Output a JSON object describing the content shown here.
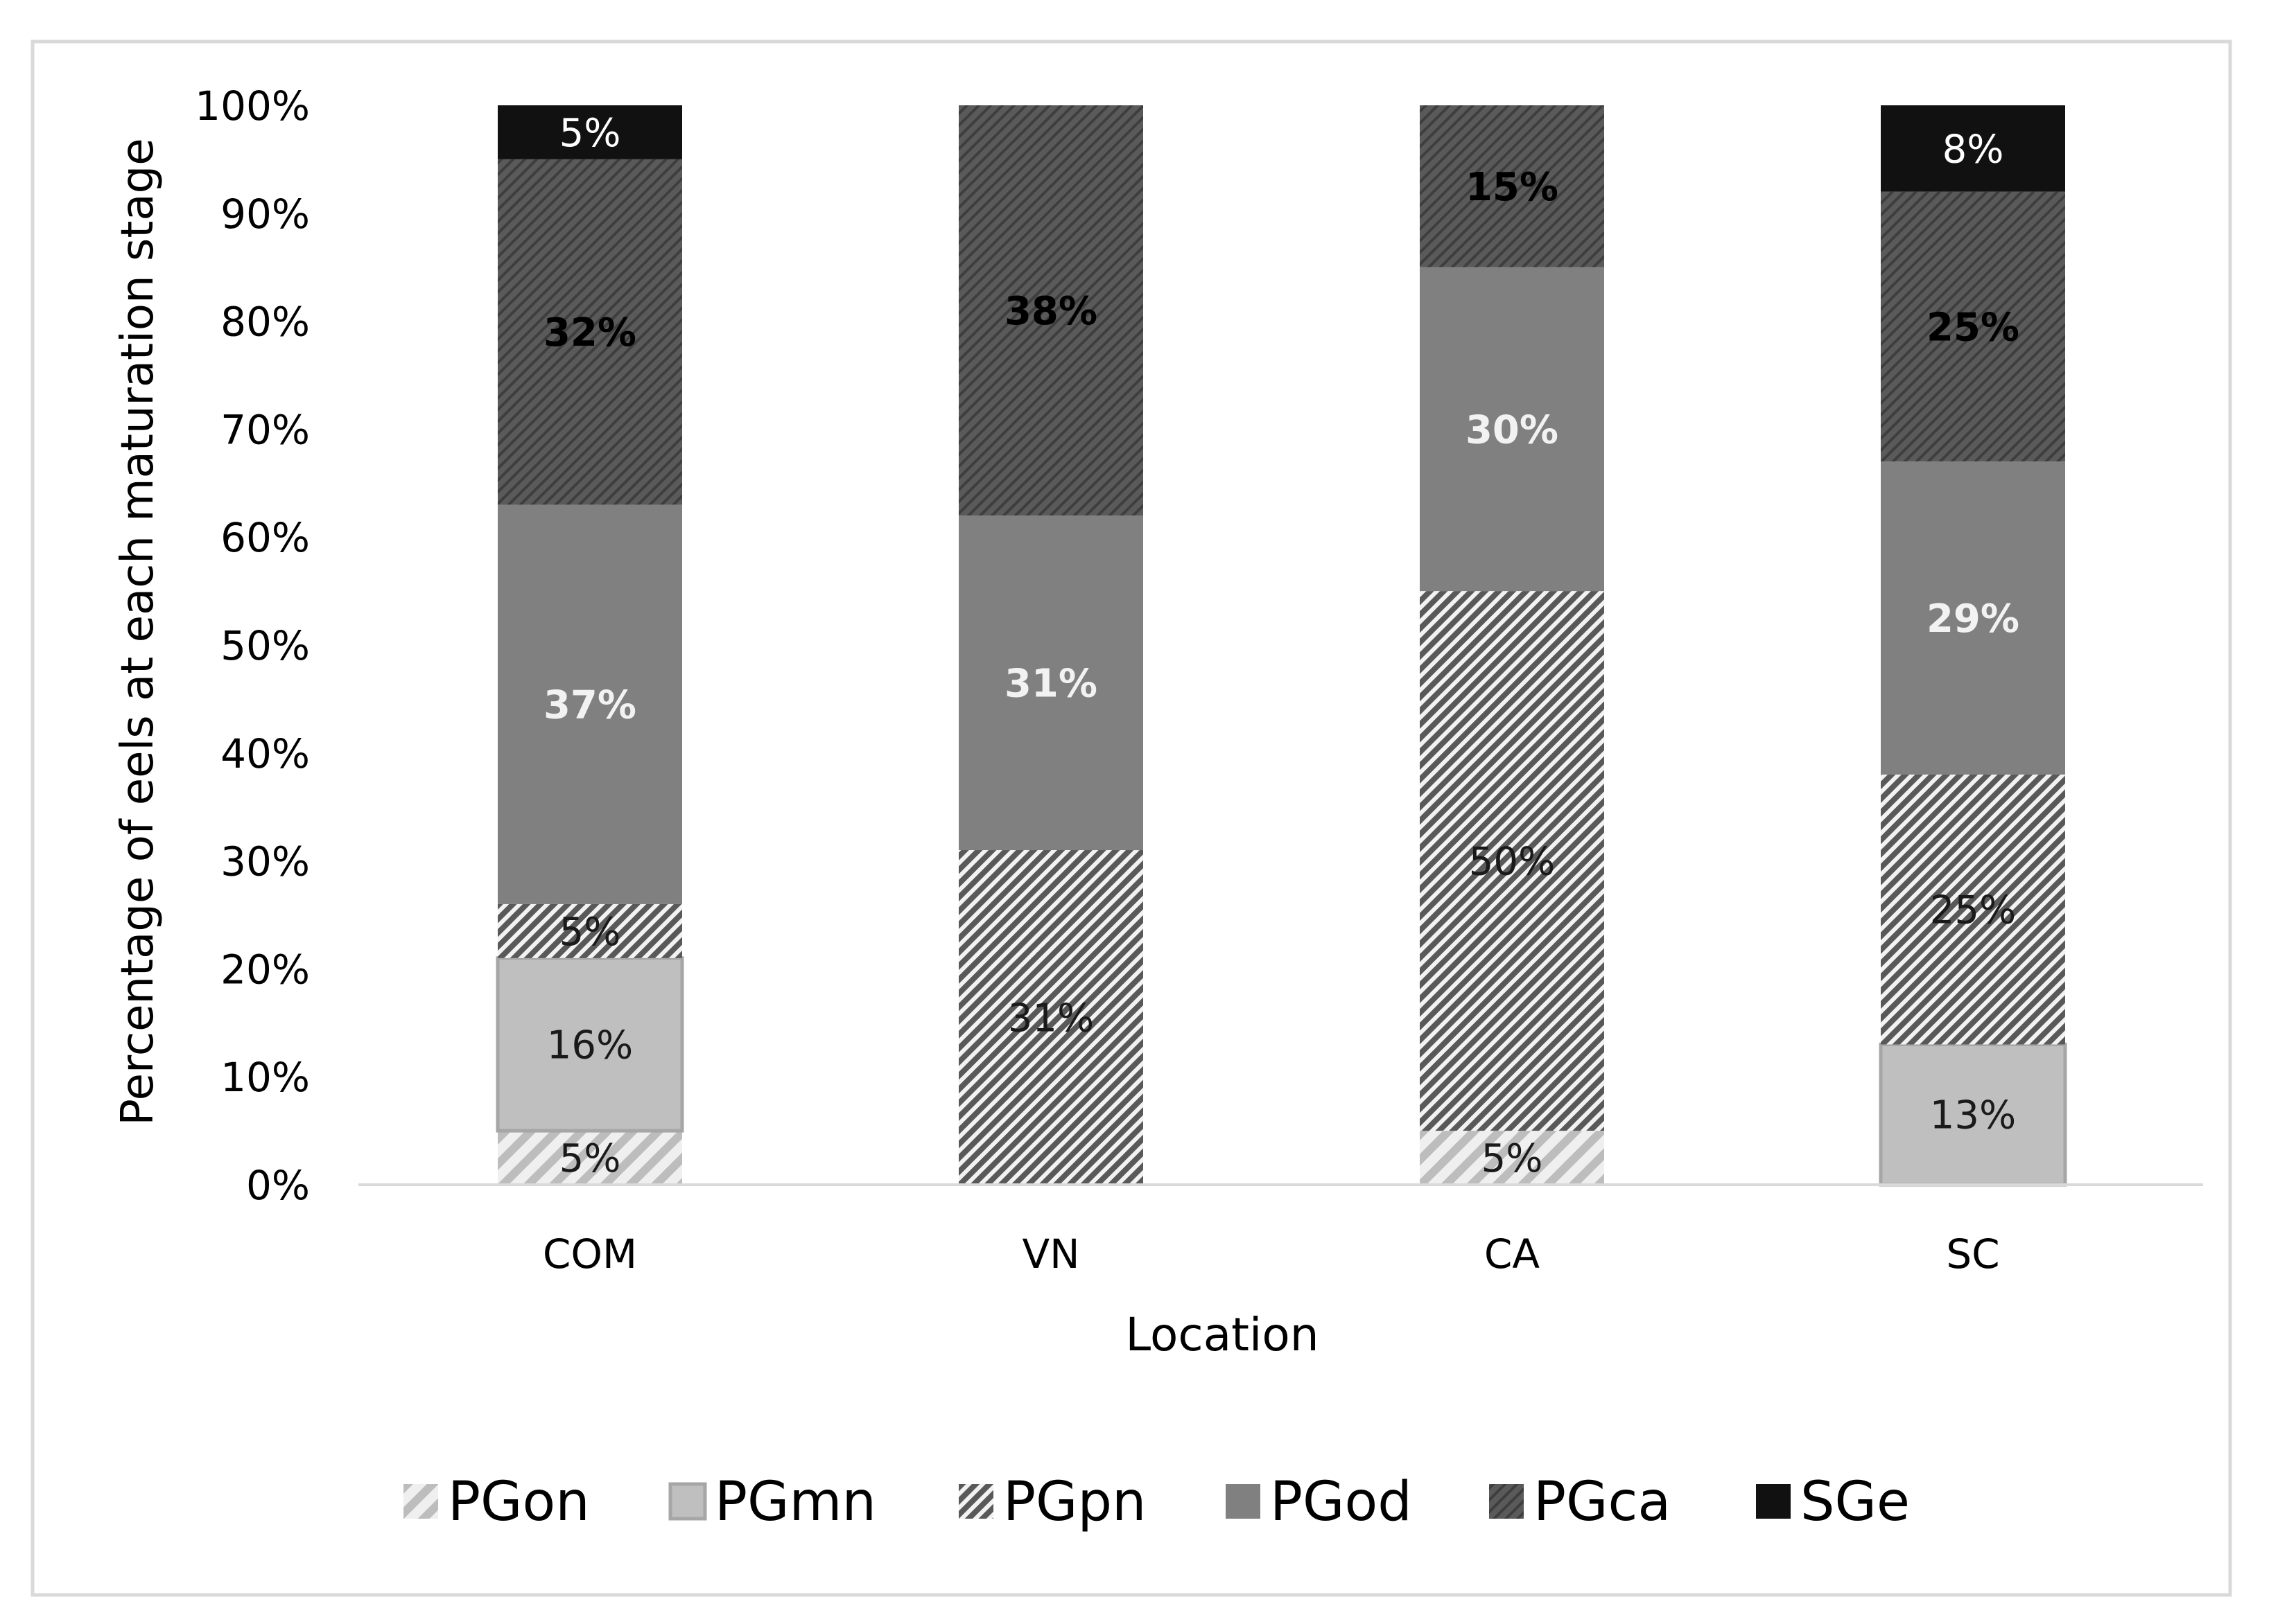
{
  "chart_data": {
    "type": "bar",
    "stacked": true,
    "title": "",
    "xlabel": "Location",
    "ylabel": "Percentage of eels at each maturation stage",
    "categories": [
      "COM",
      "VN",
      "CA",
      "SC"
    ],
    "ylim": [
      0,
      100
    ],
    "yticks": [
      "0%",
      "10%",
      "20%",
      "30%",
      "40%",
      "50%",
      "60%",
      "70%",
      "80%",
      "90%",
      "100%"
    ],
    "grid": false,
    "legend_position": "bottom",
    "series": [
      {
        "name": "PGon",
        "values": [
          5,
          0,
          5,
          0
        ],
        "labels": [
          "5%",
          "",
          "5%",
          ""
        ],
        "style": "hatch-light",
        "color": "#d3d3d3",
        "label_color": "#1a1a1a",
        "label_bold": false
      },
      {
        "name": "PGmn",
        "values": [
          16,
          0,
          0,
          13
        ],
        "labels": [
          "16%",
          "",
          "",
          "13%"
        ],
        "style": "solid",
        "color": "#bfbfbf",
        "label_color": "#1a1a1a",
        "label_bold": false
      },
      {
        "name": "PGpn",
        "values": [
          5,
          31,
          50,
          25
        ],
        "labels": [
          "5%",
          "31%",
          "50%",
          "25%"
        ],
        "style": "hatch-dense",
        "color": "#595959",
        "label_color": "#1a1a1a",
        "label_bold": false
      },
      {
        "name": "PGod",
        "values": [
          37,
          31,
          30,
          29
        ],
        "labels": [
          "37%",
          "31%",
          "30%",
          "29%"
        ],
        "style": "solid",
        "color": "#808080",
        "label_color": "#f2f2f2",
        "label_bold": true
      },
      {
        "name": "PGca",
        "values": [
          32,
          38,
          15,
          25
        ],
        "labels": [
          "32%",
          "38%",
          "15%",
          "25%"
        ],
        "style": "hatch-dark",
        "color": "#4d4d4d",
        "label_color": "#000000",
        "label_bold": true
      },
      {
        "name": "SGe",
        "values": [
          5,
          0,
          0,
          8
        ],
        "labels": [
          "5%",
          "",
          "",
          "8%"
        ],
        "style": "solid",
        "color": "#111111",
        "label_color": "#ffffff",
        "label_bold": false
      }
    ]
  }
}
